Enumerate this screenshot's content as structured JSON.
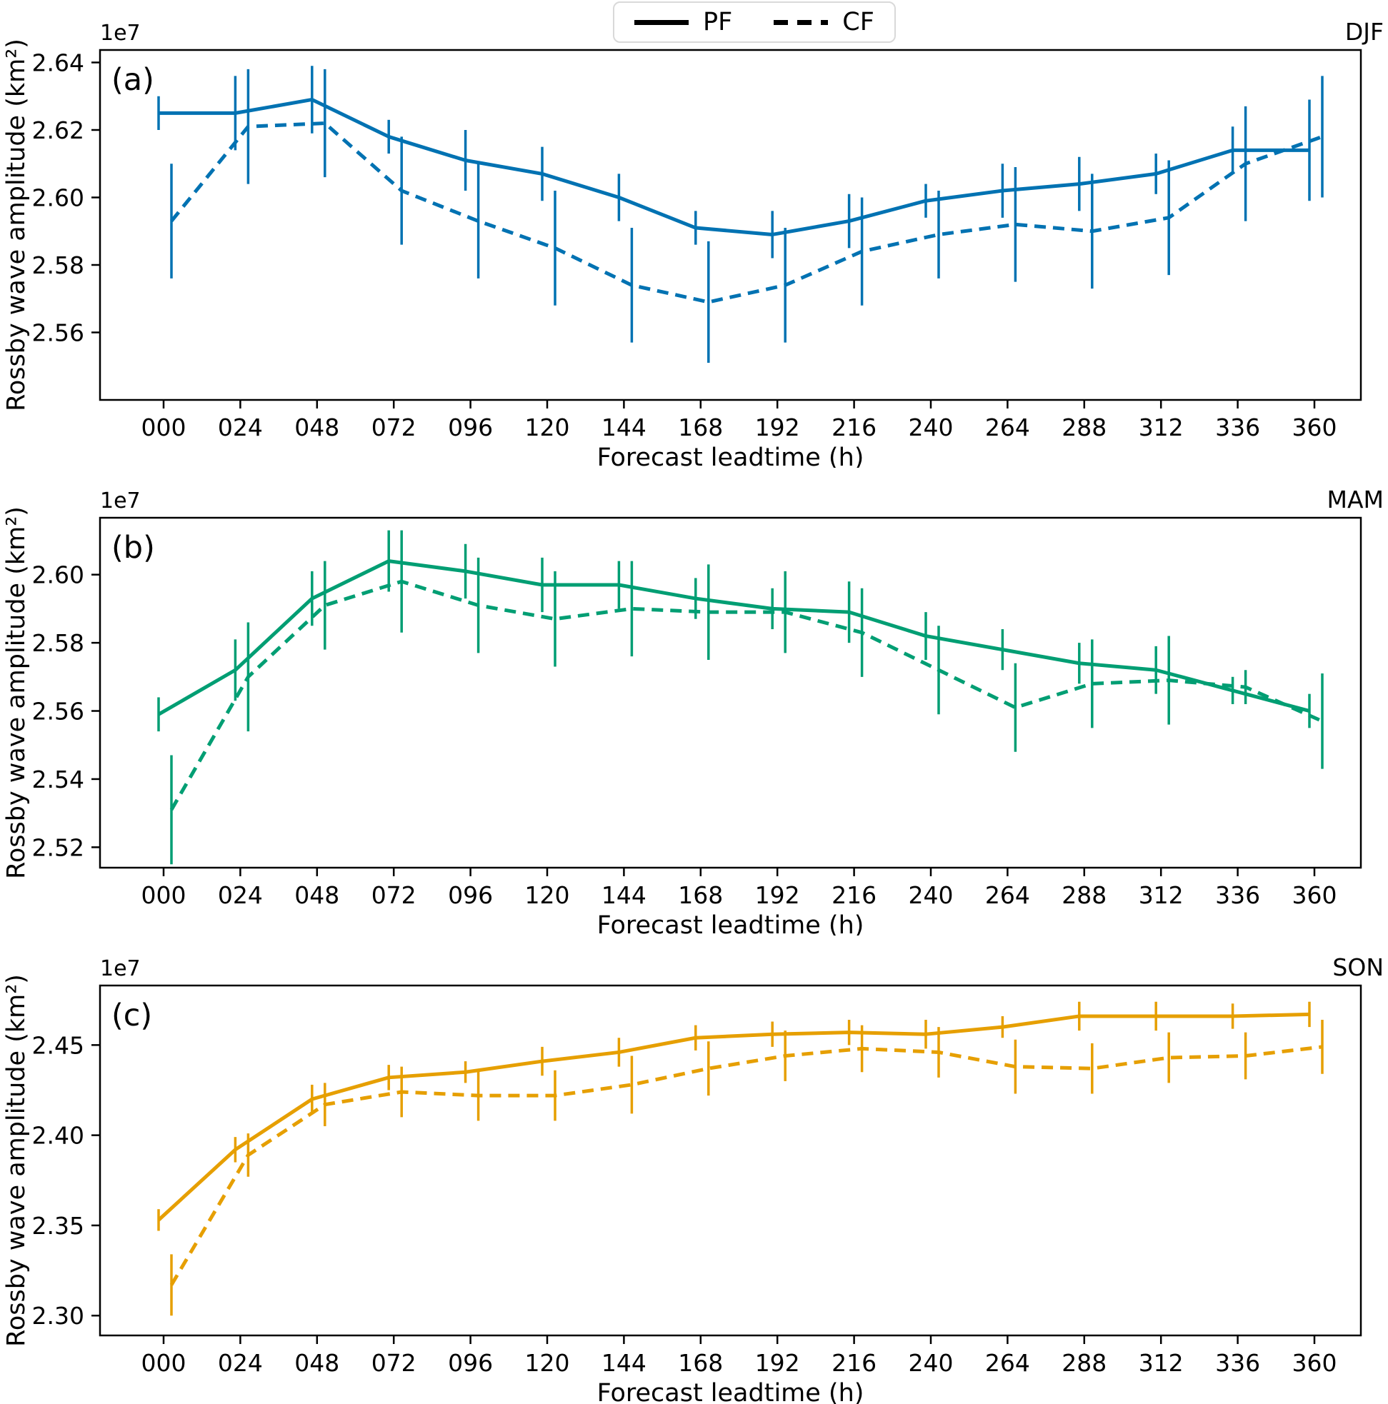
{
  "legend": {
    "items": [
      {
        "label": "PF",
        "style": "solid"
      },
      {
        "label": "CF",
        "style": "dashed"
      }
    ]
  },
  "chart_data": [
    {
      "type": "line",
      "panel_label": "(a)",
      "season": "DJF",
      "color": "#0072B2",
      "offset_text": "1e7",
      "xlabel": "Forecast leadtime (h)",
      "ylabel": "Rossby wave amplitude (km²)",
      "x_categories": [
        "000",
        "024",
        "048",
        "072",
        "096",
        "120",
        "144",
        "168",
        "192",
        "216",
        "240",
        "264",
        "288",
        "312",
        "336",
        "360"
      ],
      "yticks": [
        2.56,
        2.58,
        2.6,
        2.62,
        2.64
      ],
      "ylim": [
        2.54,
        2.6437
      ],
      "legend_position": "top-center",
      "grid": false,
      "series": [
        {
          "name": "PF",
          "style": "solid",
          "values": [
            2.625,
            2.625,
            2.629,
            2.618,
            2.611,
            2.607,
            2.6,
            2.591,
            2.589,
            2.593,
            2.599,
            2.602,
            2.604,
            2.607,
            2.614,
            2.614
          ],
          "errors": [
            0.005,
            0.011,
            0.01,
            0.005,
            0.009,
            0.008,
            0.007,
            0.005,
            0.007,
            0.008,
            0.005,
            0.008,
            0.008,
            0.006,
            0.007,
            0.015
          ]
        },
        {
          "name": "CF",
          "style": "dashed",
          "values": [
            2.593,
            2.621,
            2.622,
            2.602,
            2.593,
            2.585,
            2.574,
            2.569,
            2.574,
            2.584,
            2.589,
            2.592,
            2.59,
            2.594,
            2.61,
            2.618
          ],
          "errors": [
            0.017,
            0.017,
            0.016,
            0.016,
            0.017,
            0.017,
            0.017,
            0.018,
            0.017,
            0.016,
            0.013,
            0.017,
            0.017,
            0.017,
            0.017,
            0.018
          ]
        }
      ]
    },
    {
      "type": "line",
      "panel_label": "(b)",
      "season": "MAM",
      "color": "#009E73",
      "offset_text": "1e7",
      "xlabel": "Forecast leadtime (h)",
      "ylabel": "Rossby wave amplitude (km²)",
      "x_categories": [
        "000",
        "024",
        "048",
        "072",
        "096",
        "120",
        "144",
        "168",
        "192",
        "216",
        "240",
        "264",
        "288",
        "312",
        "336",
        "360"
      ],
      "yticks": [
        2.52,
        2.54,
        2.56,
        2.58,
        2.6
      ],
      "ylim": [
        2.514,
        2.6167
      ],
      "legend_position": "none",
      "grid": false,
      "series": [
        {
          "name": "PF",
          "style": "solid",
          "values": [
            2.559,
            2.572,
            2.593,
            2.604,
            2.601,
            2.597,
            2.597,
            2.593,
            2.59,
            2.589,
            2.582,
            2.578,
            2.574,
            2.572,
            2.566,
            2.56
          ],
          "errors": [
            0.005,
            0.009,
            0.008,
            0.009,
            0.008,
            0.008,
            0.007,
            0.006,
            0.006,
            0.009,
            0.007,
            0.006,
            0.006,
            0.007,
            0.004,
            0.005
          ]
        },
        {
          "name": "CF",
          "style": "dashed",
          "values": [
            2.531,
            2.57,
            2.591,
            2.598,
            2.591,
            2.587,
            2.59,
            2.589,
            2.589,
            2.583,
            2.572,
            2.561,
            2.568,
            2.569,
            2.567,
            2.557
          ],
          "errors": [
            0.016,
            0.016,
            0.013,
            0.015,
            0.014,
            0.014,
            0.014,
            0.014,
            0.012,
            0.013,
            0.013,
            0.013,
            0.013,
            0.013,
            0.005,
            0.014
          ]
        }
      ]
    },
    {
      "type": "line",
      "panel_label": "(c)",
      "season": "SON",
      "color": "#E69F00",
      "offset_text": "1e7",
      "xlabel": "Forecast leadtime (h)",
      "ylabel": "Rossby wave amplitude (km²)",
      "x_categories": [
        "000",
        "024",
        "048",
        "072",
        "096",
        "120",
        "144",
        "168",
        "192",
        "216",
        "240",
        "264",
        "288",
        "312",
        "336",
        "360"
      ],
      "yticks": [
        2.3,
        2.35,
        2.4,
        2.45
      ],
      "ylim": [
        2.289,
        2.483
      ],
      "legend_position": "none",
      "grid": false,
      "series": [
        {
          "name": "PF",
          "style": "solid",
          "values": [
            2.353,
            2.392,
            2.42,
            2.432,
            2.435,
            2.441,
            2.446,
            2.454,
            2.456,
            2.457,
            2.456,
            2.46,
            2.466,
            2.466,
            2.466,
            2.467
          ],
          "errors": [
            0.006,
            0.007,
            0.008,
            0.007,
            0.006,
            0.008,
            0.008,
            0.007,
            0.007,
            0.007,
            0.008,
            0.006,
            0.008,
            0.008,
            0.007,
            0.007
          ]
        },
        {
          "name": "CF",
          "style": "dashed",
          "values": [
            2.317,
            2.389,
            2.417,
            2.424,
            2.422,
            2.422,
            2.428,
            2.437,
            2.444,
            2.448,
            2.446,
            2.438,
            2.437,
            2.443,
            2.444,
            2.449
          ],
          "errors": [
            0.017,
            0.012,
            0.012,
            0.014,
            0.014,
            0.014,
            0.016,
            0.015,
            0.014,
            0.013,
            0.014,
            0.015,
            0.014,
            0.014,
            0.013,
            0.015
          ]
        }
      ]
    }
  ]
}
